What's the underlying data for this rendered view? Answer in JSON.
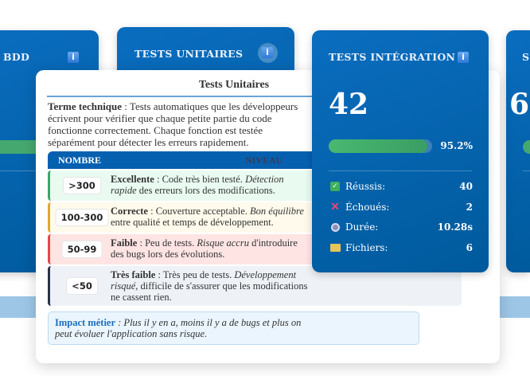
{
  "cards": {
    "bdd": {
      "title": "BDD"
    },
    "unit": {
      "title": "TESTS UNITAIRES"
    },
    "integration": {
      "title": "TESTS INTÉGRATION",
      "count": "42",
      "progress_percent": 95.2,
      "progress_label": "95.2%",
      "stats": [
        {
          "icon": "check-icon",
          "label": "Réussis:",
          "value": "40"
        },
        {
          "icon": "cross-icon",
          "label": "Échoués:",
          "value": "2"
        },
        {
          "icon": "stopwatch-icon",
          "label": "Durée:",
          "value": "10.28s"
        },
        {
          "icon": "folder-icon",
          "label": "Fichiers:",
          "value": "6"
        }
      ]
    },
    "right": {
      "title": "S",
      "count": "6"
    }
  },
  "popup": {
    "title": "Tests Unitaires",
    "term_label": "Terme technique",
    "term_lines": [
      " : Tests automatiques que les développeurs écrivent pour",
      "vérifier que chaque petite partie du code fonctionne correctement. Chaque",
      "fonction est testée séparément pour détecter les erreurs rapidement."
    ],
    "header": {
      "count": "NOMBRE",
      "level": "NIVEAU"
    },
    "rows": [
      {
        "badge": ">300",
        "level": "Excellente",
        "text": " : Code très bien testé. ",
        "em": "Détection rapide",
        "rest": " des erreurs lors",
        "line2": "des modifications.",
        "color": "#3aa86b",
        "bg": "#e9fbf1"
      },
      {
        "badge": "100-300",
        "level": "Correcte",
        "text": " : Couverture acceptable. ",
        "em": "Bon équilibre",
        "rest": " entre qualité et",
        "line2": "temps de développement.",
        "color": "#e0a82a",
        "bg": "#fffaeb"
      },
      {
        "badge": "50-99",
        "level": "Faible",
        "text": " : Peu de tests. ",
        "em": "Risque accru",
        "rest": " d'introduire des bugs lors des",
        "line2": "évolutions.",
        "color": "#e84545",
        "bg": "#ffe4e4"
      },
      {
        "badge": "<50",
        "level": "Très faible",
        "text": " : Très peu de tests. ",
        "em": "Développement risqué",
        "rest": ", difficile de",
        "line2": "s'assurer que les modifications ne cassent rien.",
        "color": "#2a3345",
        "bg": "#eef2f7"
      }
    ],
    "impact_label": "Impact métier",
    "impact_line1": " : Plus il y en a, moins il y a de bugs et plus on peut évoluer",
    "impact_line2": "l'application sans risque."
  }
}
